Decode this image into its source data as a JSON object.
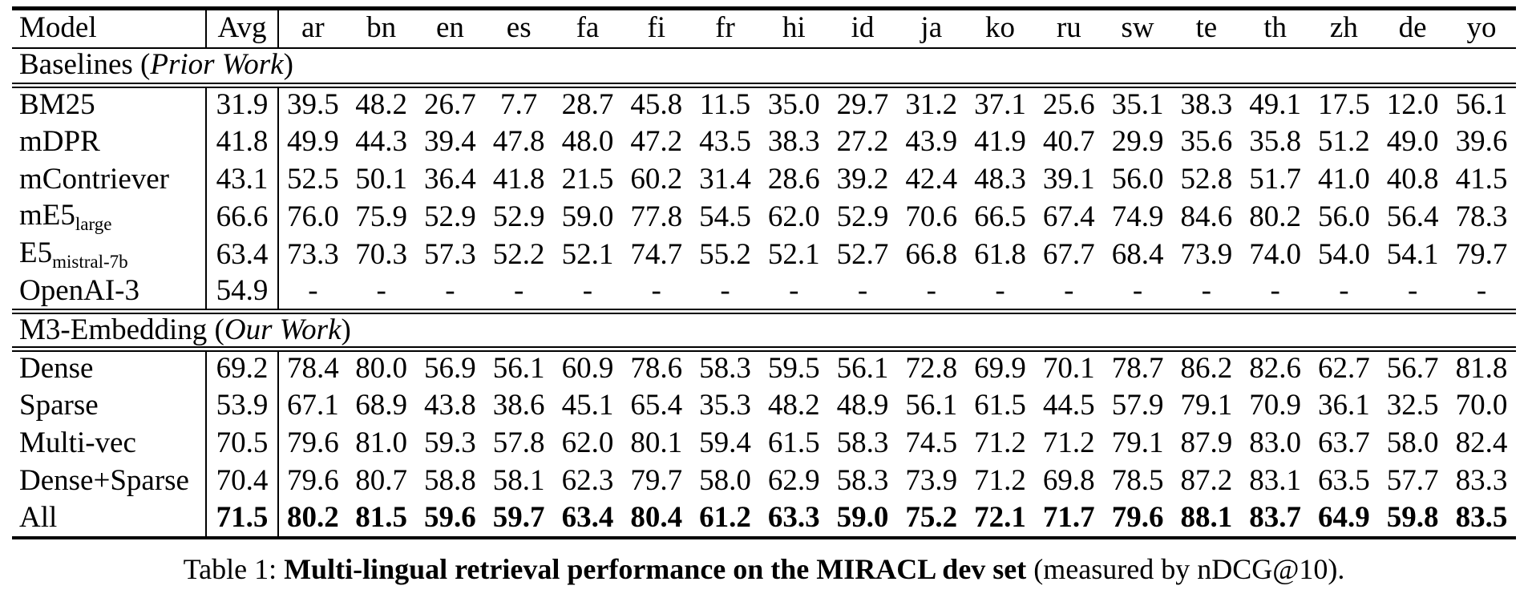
{
  "page": {
    "background": "#ffffff",
    "text_color": "#000000"
  },
  "table": {
    "header": {
      "model_label": "Model",
      "avg_label": "Avg",
      "languages": [
        "ar",
        "bn",
        "en",
        "es",
        "fa",
        "fi",
        "fr",
        "hi",
        "id",
        "ja",
        "ko",
        "ru",
        "sw",
        "te",
        "th",
        "zh",
        "de",
        "yo"
      ]
    },
    "sections": [
      {
        "title_prefix": "Baselines (",
        "title_italic": "Prior Work",
        "title_suffix": ")",
        "rule_above": false,
        "rows": [
          {
            "model": "BM25",
            "sub": "",
            "bold": false,
            "avg": "31.9",
            "values": [
              "39.5",
              "48.2",
              "26.7",
              "7.7",
              "28.7",
              "45.8",
              "11.5",
              "35.0",
              "29.7",
              "31.2",
              "37.1",
              "25.6",
              "35.1",
              "38.3",
              "49.1",
              "17.5",
              "12.0",
              "56.1"
            ]
          },
          {
            "model": "mDPR",
            "sub": "",
            "bold": false,
            "avg": "41.8",
            "values": [
              "49.9",
              "44.3",
              "39.4",
              "47.8",
              "48.0",
              "47.2",
              "43.5",
              "38.3",
              "27.2",
              "43.9",
              "41.9",
              "40.7",
              "29.9",
              "35.6",
              "35.8",
              "51.2",
              "49.0",
              "39.6"
            ]
          },
          {
            "model": "mContriever",
            "sub": "",
            "bold": false,
            "avg": "43.1",
            "values": [
              "52.5",
              "50.1",
              "36.4",
              "41.8",
              "21.5",
              "60.2",
              "31.4",
              "28.6",
              "39.2",
              "42.4",
              "48.3",
              "39.1",
              "56.0",
              "52.8",
              "51.7",
              "41.0",
              "40.8",
              "41.5"
            ]
          },
          {
            "model": "mE5",
            "sub": "large",
            "bold": false,
            "avg": "66.6",
            "values": [
              "76.0",
              "75.9",
              "52.9",
              "52.9",
              "59.0",
              "77.8",
              "54.5",
              "62.0",
              "52.9",
              "70.6",
              "66.5",
              "67.4",
              "74.9",
              "84.6",
              "80.2",
              "56.0",
              "56.4",
              "78.3"
            ]
          },
          {
            "model": "E5",
            "sub": "mistral-7b",
            "bold": false,
            "avg": "63.4",
            "values": [
              "73.3",
              "70.3",
              "57.3",
              "52.2",
              "52.1",
              "74.7",
              "55.2",
              "52.1",
              "52.7",
              "66.8",
              "61.8",
              "67.7",
              "68.4",
              "73.9",
              "74.0",
              "54.0",
              "54.1",
              "79.7"
            ]
          },
          {
            "model": "OpenAI-3",
            "sub": "",
            "bold": false,
            "avg": "54.9",
            "values": [
              "-",
              "-",
              "-",
              "-",
              "-",
              "-",
              "-",
              "-",
              "-",
              "-",
              "-",
              "-",
              "-",
              "-",
              "-",
              "-",
              "-",
              "-"
            ]
          }
        ]
      },
      {
        "title_prefix": "M3-Embedding (",
        "title_italic": "Our Work",
        "title_suffix": ")",
        "rule_above": true,
        "rows": [
          {
            "model": "Dense",
            "sub": "",
            "bold": false,
            "avg": "69.2",
            "values": [
              "78.4",
              "80.0",
              "56.9",
              "56.1",
              "60.9",
              "78.6",
              "58.3",
              "59.5",
              "56.1",
              "72.8",
              "69.9",
              "70.1",
              "78.7",
              "86.2",
              "82.6",
              "62.7",
              "56.7",
              "81.8"
            ]
          },
          {
            "model": "Sparse",
            "sub": "",
            "bold": false,
            "avg": "53.9",
            "values": [
              "67.1",
              "68.9",
              "43.8",
              "38.6",
              "45.1",
              "65.4",
              "35.3",
              "48.2",
              "48.9",
              "56.1",
              "61.5",
              "44.5",
              "57.9",
              "79.1",
              "70.9",
              "36.1",
              "32.5",
              "70.0"
            ]
          },
          {
            "model": "Multi-vec",
            "sub": "",
            "bold": false,
            "avg": "70.5",
            "values": [
              "79.6",
              "81.0",
              "59.3",
              "57.8",
              "62.0",
              "80.1",
              "59.4",
              "61.5",
              "58.3",
              "74.5",
              "71.2",
              "71.2",
              "79.1",
              "87.9",
              "83.0",
              "63.7",
              "58.0",
              "82.4"
            ]
          },
          {
            "model": "Dense+Sparse",
            "sub": "",
            "bold": false,
            "avg": "70.4",
            "values": [
              "79.6",
              "80.7",
              "58.8",
              "58.1",
              "62.3",
              "79.7",
              "58.0",
              "62.9",
              "58.3",
              "73.9",
              "71.2",
              "69.8",
              "78.5",
              "87.2",
              "83.1",
              "63.5",
              "57.7",
              "83.3"
            ]
          },
          {
            "model": "All",
            "sub": "",
            "bold": true,
            "avg": "71.5",
            "values": [
              "80.2",
              "81.5",
              "59.6",
              "59.7",
              "63.4",
              "80.4",
              "61.2",
              "63.3",
              "59.0",
              "75.2",
              "72.1",
              "71.7",
              "79.6",
              "88.1",
              "83.7",
              "64.9",
              "59.8",
              "83.5"
            ]
          }
        ]
      }
    ]
  },
  "caption": {
    "prefix": "Table 1: ",
    "bold": "Multi-lingual retrieval performance on the MIRACL dev set",
    "suffix": " (measured by nDCG@10)."
  }
}
